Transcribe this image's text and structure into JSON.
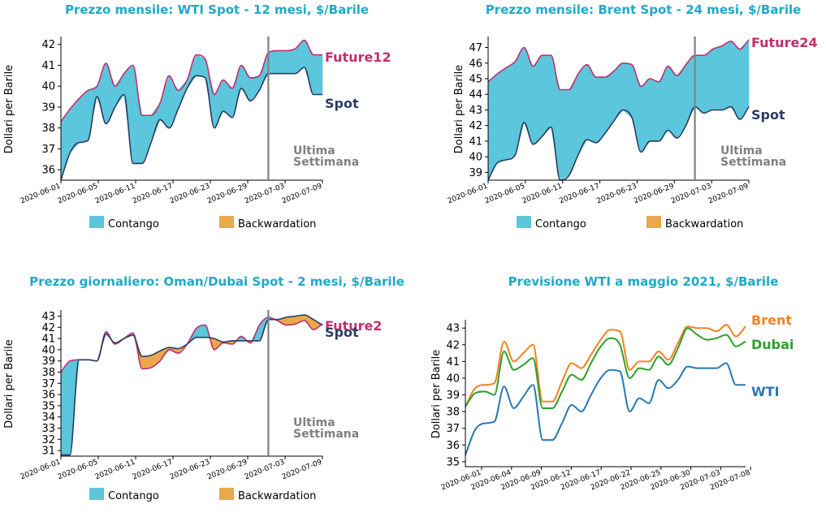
{
  "colors": {
    "contango": "#5bc6dc",
    "backwardation": "#e8a84b",
    "future": "#c2306e",
    "spot": "#2b3d62",
    "vline": "#808080",
    "title": "#20a9c9",
    "wti": "#2778b4",
    "brent": "#f58220",
    "dubai": "#2ca02c"
  },
  "legend": {
    "contango": "Contango",
    "backwardation": "Backwardation"
  },
  "chart_data": [
    {
      "id": "p1",
      "type": "area",
      "title": "Prezzo mensile: WTI Spot - 12 mesi, $/Barile",
      "ylabel": "Dollari per Barile",
      "ylim": [
        35.5,
        42.3
      ],
      "yticks": [
        36,
        37,
        38,
        39,
        40,
        41,
        42
      ],
      "xticks": [
        "2020-06-01",
        "2020-06-05",
        "2020-06-11",
        "2020-06-17",
        "2020-06-23",
        "2020-06-29",
        "2020-07-03",
        "2020-07-09"
      ],
      "vline_label": [
        "Ultima",
        "Settimana"
      ],
      "series": [
        {
          "name": "Future12",
          "values": [
            38.3,
            38.9,
            39.4,
            39.8,
            40.0,
            41.1,
            40.0,
            40.6,
            41.0,
            38.6,
            38.6,
            39.2,
            40.5,
            39.8,
            40.3,
            41.5,
            41.3,
            39.6,
            40.3,
            39.9,
            41.0,
            40.4,
            40.5,
            41.6,
            41.7,
            41.7,
            41.8,
            42.2,
            41.5,
            41.5
          ]
        },
        {
          "name": "Spot",
          "values": [
            35.5,
            36.8,
            37.3,
            37.4,
            39.5,
            38.2,
            39.0,
            39.6,
            36.3,
            36.3,
            37.3,
            38.4,
            38.0,
            38.9,
            39.9,
            40.5,
            40.4,
            38.0,
            38.8,
            38.5,
            39.9,
            39.3,
            39.8,
            40.6,
            40.6,
            40.6,
            40.6,
            40.9,
            39.6,
            39.6
          ]
        }
      ]
    },
    {
      "id": "p2",
      "type": "area",
      "title": "Prezzo mensile: Brent Spot - 24 mesi, $/Barile",
      "ylabel": "Dollari per Barile",
      "ylim": [
        38.5,
        47.6
      ],
      "yticks": [
        39,
        40,
        41,
        42,
        43,
        44,
        45,
        46,
        47
      ],
      "xticks": [
        "2020-06-01",
        "2020-06-05",
        "2020-06-11",
        "2020-06-17",
        "2020-06-23",
        "2020-06-29",
        "2020-07-03",
        "2020-07-09"
      ],
      "vline_label": [
        "Ultima",
        "Settimana"
      ],
      "series": [
        {
          "name": "Future24",
          "values": [
            44.8,
            45.3,
            45.7,
            46.1,
            47.0,
            45.8,
            46.5,
            46.5,
            44.3,
            44.3,
            45.3,
            45.9,
            45.1,
            45.1,
            45.5,
            46.0,
            45.9,
            44.5,
            45.0,
            44.8,
            45.8,
            45.2,
            45.9,
            46.5,
            46.5,
            46.9,
            47.1,
            47.4,
            46.9,
            47.5
          ]
        },
        {
          "name": "Spot",
          "values": [
            38.5,
            39.6,
            39.8,
            40.1,
            42.2,
            40.8,
            41.3,
            41.9,
            38.5,
            38.8,
            40.1,
            41.1,
            40.9,
            41.5,
            42.3,
            43.0,
            42.5,
            40.3,
            41.0,
            41.0,
            41.7,
            41.2,
            42.0,
            43.2,
            42.8,
            43.0,
            43.0,
            43.2,
            42.4,
            43.2
          ]
        }
      ]
    },
    {
      "id": "p3",
      "type": "area",
      "title": "Prezzo giornaliero: Oman/Dubai Spot - 2 mesi, $/Barile",
      "ylabel": "Dollari per Barile",
      "ylim": [
        30.5,
        43.4
      ],
      "yticks": [
        31,
        32,
        33,
        34,
        35,
        36,
        37,
        38,
        39,
        40,
        41,
        42,
        43
      ],
      "xticks": [
        "2020-06-01",
        "2020-06-05",
        "2020-06-11",
        "2020-06-17",
        "2020-06-23",
        "2020-06-29",
        "2020-07-03",
        "2020-07-09"
      ],
      "vline_label": [
        "Ultima",
        "Settimana"
      ],
      "series": [
        {
          "name": "Future2",
          "values": [
            38.0,
            39.0,
            39.1,
            39.1,
            39.0,
            41.6,
            40.5,
            41.0,
            41.5,
            38.3,
            38.4,
            39.0,
            40.0,
            39.7,
            40.5,
            41.9,
            42.2,
            40.0,
            40.6,
            40.5,
            41.2,
            40.6,
            42.2,
            42.9,
            42.6,
            42.2,
            42.3,
            42.6,
            41.8,
            42.3
          ]
        },
        {
          "name": "Spot",
          "values": [
            30.6,
            30.6,
            39.1,
            39.1,
            39.0,
            41.4,
            40.6,
            41.0,
            41.3,
            39.4,
            39.5,
            39.9,
            40.2,
            40.1,
            40.5,
            41.1,
            41.1,
            41.0,
            40.7,
            40.8,
            40.8,
            40.8,
            40.8,
            42.7,
            42.7,
            42.9,
            43.0,
            43.1,
            42.7,
            42.2
          ]
        }
      ]
    },
    {
      "id": "p4",
      "type": "line",
      "title": "Previsione WTI a maggio 2021, $/Barile",
      "ylabel": "Dollari per Barile",
      "ylim": [
        34.7,
        43.4
      ],
      "yticks": [
        35,
        36,
        37,
        38,
        39,
        40,
        41,
        42,
        43
      ],
      "xticks": [
        "2020-06-01",
        "2020-06-04",
        "2020-06-09",
        "2020-06-12",
        "2020-06-17",
        "2020-06-22",
        "2020-06-25",
        "2020-06-30",
        "2020-07-03",
        "2020-07-08"
      ],
      "series": [
        {
          "name": "Brent",
          "values": [
            38.3,
            39.4,
            39.6,
            39.7,
            42.2,
            41.0,
            41.5,
            42.0,
            38.6,
            38.6,
            39.8,
            40.9,
            40.6,
            41.4,
            42.3,
            42.9,
            42.8,
            40.5,
            41.0,
            41.0,
            41.6,
            41.1,
            42.1,
            43.1,
            43.0,
            43.0,
            42.8,
            43.2,
            42.5,
            43.1
          ]
        },
        {
          "name": "Dubai",
          "values": [
            38.3,
            39.1,
            39.2,
            39.0,
            41.6,
            40.5,
            40.8,
            41.2,
            38.2,
            38.2,
            39.2,
            40.2,
            39.9,
            40.9,
            41.9,
            42.4,
            42.0,
            40.0,
            40.6,
            40.5,
            41.3,
            40.8,
            41.8,
            43.0,
            42.6,
            42.3,
            42.4,
            42.6,
            41.9,
            42.2
          ]
        },
        {
          "name": "WTI",
          "values": [
            35.4,
            36.9,
            37.3,
            37.4,
            39.5,
            38.2,
            38.9,
            39.6,
            36.3,
            36.3,
            37.3,
            38.4,
            38.0,
            39.0,
            40.0,
            40.5,
            40.4,
            38.0,
            38.8,
            38.5,
            39.9,
            39.4,
            39.9,
            40.7,
            40.6,
            40.6,
            40.6,
            40.9,
            39.6,
            39.6
          ]
        }
      ]
    }
  ]
}
